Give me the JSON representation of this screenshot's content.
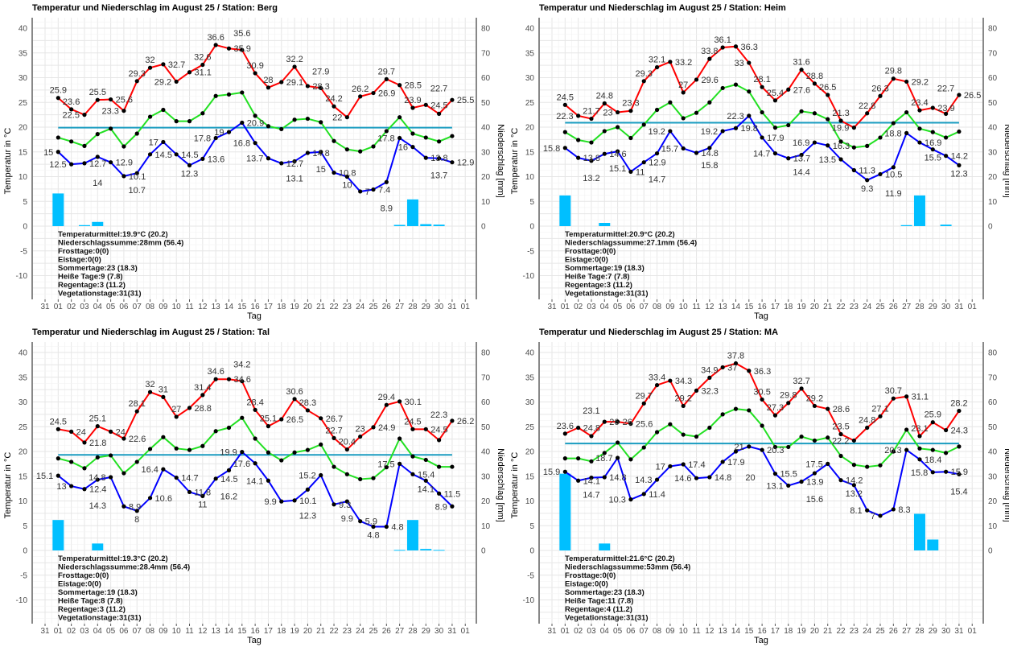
{
  "colors": {
    "max": "#ff0000",
    "mean": "#22e022",
    "min": "#0000ff",
    "mean_line": "#1a9cc0",
    "precip": "#00bfff",
    "points": "#000000"
  },
  "chart_data": [
    {
      "type": "line",
      "title": "Temperatur und Niederschlag im August 25 / Station: Berg",
      "xlabel": "Tag",
      "ylabel": "Temperatur in °C",
      "y2label": "Niederschlag [mm]",
      "x_ticks": [
        "31",
        "01",
        "02",
        "03",
        "04",
        "05",
        "06",
        "07",
        "08",
        "09",
        "10",
        "11",
        "12",
        "13",
        "14",
        "15",
        "16",
        "17",
        "18",
        "19",
        "20",
        "21",
        "22",
        "23",
        "24",
        "25",
        "26",
        "27",
        "28",
        "29",
        "30",
        "31",
        "01"
      ],
      "y_ticks": [
        -10,
        -5,
        0,
        5,
        10,
        15,
        20,
        25,
        30,
        35,
        40
      ],
      "y2_ticks": [
        0,
        10,
        20,
        30,
        40,
        50,
        60,
        70,
        80
      ],
      "ylim": [
        -13,
        42
      ],
      "y2lim": [
        0,
        80
      ],
      "grid": true,
      "temp_mean_line": 19.9,
      "max": [
        25.9,
        23.6,
        22.5,
        25.5,
        25.6,
        23.3,
        29.3,
        32,
        32.7,
        29.2,
        31.1,
        32.6,
        36.6,
        35.9,
        35.6,
        30.9,
        28,
        29.1,
        32.2,
        28.3,
        27.9,
        24.2,
        22,
        26.2,
        26.9,
        29.7,
        28.5,
        23.9,
        24.5,
        22.7,
        25.5
      ],
      "mean": [
        17.9,
        17.1,
        16.2,
        18.6,
        19.7,
        16.1,
        18.7,
        22.1,
        23.5,
        21.2,
        21.2,
        22.8,
        26.3,
        26.6,
        27,
        22.3,
        20.2,
        19.6,
        21.5,
        21.7,
        21,
        17.2,
        15.5,
        15.1,
        16.1,
        19.2,
        22,
        18.7,
        17.9,
        17.1,
        18.2
      ],
      "min": [
        15,
        12.5,
        12.7,
        14,
        12.9,
        10.1,
        10.7,
        14.5,
        17,
        14.5,
        12.3,
        13.6,
        17.8,
        19,
        20.9,
        16.8,
        13.7,
        12.7,
        13.1,
        14.8,
        15,
        10.8,
        10,
        7,
        7.4,
        8.9,
        17.8,
        16,
        13.8,
        13.7,
        12.9
      ],
      "precip": [
        13.2,
        0,
        0.4,
        1.7,
        0,
        0,
        0,
        0,
        0,
        0,
        0,
        0,
        0,
        0,
        0,
        0,
        0,
        0,
        0,
        0,
        0,
        0,
        0,
        0,
        0,
        0,
        0.5,
        10.8,
        0.8,
        0.6,
        0
      ]
    },
    {
      "type": "line",
      "title": "Temperatur und Niederschlag im August 25 / Station: Heim",
      "xlabel": "Tag",
      "ylabel": "Temperatur in °C",
      "y2label": "Niederschlag [mm]",
      "x_ticks": [
        "31",
        "01",
        "02",
        "03",
        "04",
        "05",
        "06",
        "07",
        "08",
        "09",
        "10",
        "11",
        "12",
        "13",
        "14",
        "15",
        "16",
        "17",
        "18",
        "19",
        "20",
        "21",
        "22",
        "23",
        "24",
        "25",
        "26",
        "27",
        "28",
        "29",
        "30",
        "31",
        "01"
      ],
      "y_ticks": [
        -10,
        -5,
        0,
        5,
        10,
        15,
        20,
        25,
        30,
        35,
        40
      ],
      "y2_ticks": [
        0,
        10,
        20,
        30,
        40,
        50,
        60,
        70,
        80
      ],
      "ylim": [
        -13,
        42
      ],
      "y2lim": [
        0,
        80
      ],
      "grid": true,
      "temp_mean_line": 20.9,
      "max": [
        24.5,
        22.3,
        21.7,
        24.8,
        23,
        23.3,
        29.3,
        32.1,
        33.2,
        27,
        29.6,
        33.8,
        36.1,
        36.3,
        33,
        28.1,
        25.4,
        27.6,
        31.6,
        28.8,
        26.5,
        21.3,
        19.9,
        22.8,
        26.3,
        29.8,
        29.2,
        23.4,
        23.9,
        22.7,
        26.5
      ],
      "mean": [
        19,
        17.4,
        16.9,
        19.2,
        20,
        17.8,
        20.5,
        23.5,
        25,
        21.8,
        22.9,
        25,
        27.9,
        28.6,
        27.2,
        23,
        19.9,
        20.4,
        23.2,
        22.8,
        21.6,
        17.1,
        15.9,
        16.2,
        17.9,
        20.8,
        23,
        19.7,
        19,
        17.9,
        19.1
      ],
      "min": [
        15.8,
        13.8,
        13.2,
        14.6,
        15.1,
        11,
        12.9,
        14.7,
        19.2,
        15.7,
        14.8,
        15.8,
        19.2,
        19.8,
        22.3,
        17.9,
        14.7,
        13.7,
        14.4,
        16.9,
        16.3,
        13.5,
        11.3,
        9.3,
        10.5,
        11.9,
        18.8,
        16.9,
        15.5,
        14.2,
        12.3
      ],
      "precip": [
        12.4,
        0,
        0,
        1.3,
        0,
        0,
        0,
        0,
        0,
        0,
        0,
        0,
        0,
        0,
        0,
        0,
        0,
        0,
        0,
        0,
        0,
        0,
        0,
        0,
        0,
        0,
        0.4,
        12.4,
        0,
        0.6,
        0
      ]
    },
    {
      "type": "line",
      "title": "Temperatur und Niederschlag im August 25 / Station: Tal",
      "xlabel": "Tag",
      "ylabel": "Temperatur in °C",
      "y2label": "Niederschlag [mm]",
      "x_ticks": [
        "31",
        "01",
        "02",
        "03",
        "04",
        "05",
        "06",
        "07",
        "08",
        "09",
        "10",
        "11",
        "12",
        "13",
        "14",
        "15",
        "16",
        "17",
        "18",
        "19",
        "20",
        "21",
        "22",
        "23",
        "24",
        "25",
        "26",
        "27",
        "28",
        "29",
        "30",
        "31",
        "01"
      ],
      "y_ticks": [
        -10,
        -5,
        0,
        5,
        10,
        15,
        20,
        25,
        30,
        35,
        40
      ],
      "y2_ticks": [
        0,
        10,
        20,
        30,
        40,
        50,
        60,
        70,
        80
      ],
      "ylim": [
        -13,
        42
      ],
      "y2lim": [
        0,
        80
      ],
      "grid": true,
      "temp_mean_line": 19.3,
      "max": [
        24.5,
        24,
        21.8,
        25.1,
        24,
        22.6,
        28.1,
        32,
        31,
        27,
        28.8,
        31.4,
        34.6,
        34.6,
        34.2,
        28.4,
        25.1,
        26.5,
        30.6,
        28.3,
        26.7,
        22.7,
        20.4,
        23,
        24.9,
        29.4,
        30.1,
        24.5,
        24.5,
        22.3,
        26.2
      ],
      "mean": [
        18.6,
        17.9,
        16.6,
        18.8,
        19.2,
        15.6,
        17.9,
        20.5,
        22.9,
        20.6,
        20.3,
        21.1,
        24.1,
        24.8,
        26.8,
        22.6,
        19.8,
        18.2,
        19.8,
        20.3,
        21.4,
        16.9,
        15.4,
        14.4,
        14.6,
        16.8,
        22.6,
        19,
        18.3,
        16.9,
        16.9
      ],
      "min": [
        15.1,
        13,
        12.4,
        14.3,
        14.8,
        8.9,
        8,
        10.6,
        16.4,
        14.7,
        11.8,
        11,
        14.5,
        16.2,
        19.9,
        17.6,
        14.1,
        9.9,
        10.1,
        12.3,
        15.2,
        9.3,
        9.9,
        5.9,
        4.8,
        4.8,
        17.5,
        15.4,
        14.1,
        11.5,
        8.9
      ],
      "precip": [
        12.3,
        0,
        0,
        2.8,
        0,
        0,
        0,
        0,
        0,
        0,
        0,
        0,
        0,
        0,
        0,
        0,
        0,
        0,
        0,
        0,
        0,
        0,
        0,
        0,
        0,
        0,
        0.2,
        12.3,
        0.6,
        0.2,
        0
      ]
    },
    {
      "type": "line",
      "title": "Temperatur und Niederschlag im August 25 / Station: MA",
      "xlabel": "Tag",
      "ylabel": "Temperatur in °C",
      "y2label": "Niederschlag [mm]",
      "x_ticks": [
        "31",
        "01",
        "02",
        "03",
        "04",
        "05",
        "06",
        "07",
        "08",
        "09",
        "10",
        "11",
        "12",
        "13",
        "14",
        "15",
        "16",
        "17",
        "18",
        "19",
        "20",
        "21",
        "22",
        "23",
        "24",
        "25",
        "26",
        "27",
        "28",
        "29",
        "30",
        "31",
        "01"
      ],
      "y_ticks": [
        -10,
        -5,
        0,
        5,
        10,
        15,
        20,
        25,
        30,
        35,
        40
      ],
      "y2_ticks": [
        0,
        10,
        20,
        30,
        40,
        50,
        60,
        70,
        80
      ],
      "ylim": [
        -13,
        42
      ],
      "y2lim": [
        0,
        80
      ],
      "grid": true,
      "temp_mean_line": 21.6,
      "max": [
        23.6,
        24.8,
        23.1,
        26,
        26,
        25.6,
        29.7,
        33.4,
        34.3,
        29.2,
        32.3,
        34.9,
        37,
        37.8,
        36.3,
        30.5,
        27.3,
        29.8,
        32.7,
        29.2,
        28.6,
        23.5,
        22.2,
        24.8,
        27.1,
        30.7,
        31.1,
        23.1,
        25.9,
        24.3,
        28.2
      ],
      "mean": [
        18.6,
        18.6,
        18,
        19.7,
        21.8,
        18.4,
        20.8,
        23.9,
        25.5,
        23.4,
        23,
        24.8,
        27.5,
        28.6,
        28.3,
        25.2,
        20.9,
        20.9,
        23,
        22.2,
        22.8,
        19.1,
        17.3,
        16.9,
        17.2,
        20,
        24.4,
        20.6,
        20.3,
        19.7,
        21
      ],
      "min": [
        15.9,
        14.1,
        14.7,
        14.8,
        18.7,
        10.3,
        11.4,
        14.3,
        17,
        17.4,
        14.6,
        14.8,
        17.9,
        20,
        21,
        20.3,
        15.5,
        13.1,
        13.9,
        15.6,
        17.5,
        14.2,
        13.2,
        8.1,
        7,
        8.3,
        20.3,
        18.4,
        15.8,
        15.9,
        15.4
      ],
      "precip": [
        31,
        0,
        0,
        2.8,
        0,
        0,
        0,
        0,
        0,
        0,
        0,
        0,
        0,
        0,
        0,
        0,
        0,
        0,
        0,
        0,
        0,
        0,
        0,
        0,
        0,
        0,
        0,
        14.8,
        4.4,
        0,
        0
      ]
    }
  ],
  "stats": [
    [
      "Temperaturmittel:19.9°C (20.2)",
      "Niederschlagssumme:28mm (56.4)",
      "Frosttage:0(0)",
      "Eistage:0(0)",
      "Sommertage:23 (18.3)",
      "Heiße Tage:9 (7.8)",
      "Regentage:3 (11.2)",
      "Vegetationstage:31(31)"
    ],
    [
      "Temperaturmittel:20.9°C (20.2)",
      "Niederschlagssumme:27.1mm (56.4)",
      "Frosttage:0(0)",
      "Eistage:0(0)",
      "Sommertage:19 (18.3)",
      "Heiße Tage:7 (7.8)",
      "Regentage:3 (11.2)",
      "Vegetationstage:31(31)"
    ],
    [
      "Temperaturmittel:19.3°C (20.2)",
      "Niederschlagssumme:28.4mm (56.4)",
      "Frosttage:0(0)",
      "Eistage:0(0)",
      "Sommertage:19 (18.3)",
      "Heiße Tage:8 (7.8)",
      "Regentage:3 (11.2)",
      "Vegetationstage:31(31)"
    ],
    [
      "Temperaturmittel:21.6°C (20.2)",
      "Niederschlagssumme:53mm (56.4)",
      "Frosttage:0(0)",
      "Eistage:0(0)",
      "Sommertage:23 (18.3)",
      "Heiße Tage:11 (7.8)",
      "Regentage:4 (11.2)",
      "Vegetationstage:31(31)"
    ]
  ]
}
